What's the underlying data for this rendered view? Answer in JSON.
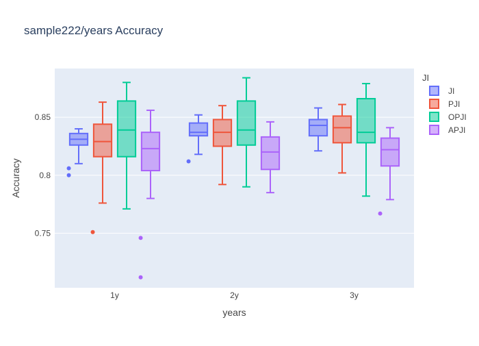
{
  "chart_data": {
    "type": "box",
    "title": "sample222/years Accuracy",
    "xlabel": "years",
    "ylabel": "Accuracy",
    "ylim": [
      0.703,
      0.892
    ],
    "yticks": [
      0.75,
      0.8,
      0.85
    ],
    "ytick_labels": [
      "0.75",
      "0.8",
      "0.85"
    ],
    "categories": [
      "1y",
      "2y",
      "3y"
    ],
    "legend_title": "JI",
    "legend_position": "right",
    "grid": true,
    "colors": {
      "plot_bg": "#e5ecf6",
      "grid": "#ffffff",
      "text": "#444444",
      "title": "#2a3f5f"
    },
    "series": [
      {
        "name": "JI",
        "color": "#636efa",
        "boxes": [
          {
            "min": 0.81,
            "q1": 0.826,
            "median": 0.831,
            "q3": 0.836,
            "max": 0.84,
            "outliers": [
              0.806,
              0.8
            ]
          },
          {
            "min": 0.818,
            "q1": 0.834,
            "median": 0.837,
            "q3": 0.845,
            "max": 0.852,
            "outliers": [
              0.812
            ]
          },
          {
            "min": 0.821,
            "q1": 0.834,
            "median": 0.843,
            "q3": 0.848,
            "max": 0.858,
            "outliers": []
          }
        ]
      },
      {
        "name": "PJI",
        "color": "#ef553b",
        "boxes": [
          {
            "min": 0.776,
            "q1": 0.816,
            "median": 0.829,
            "q3": 0.844,
            "max": 0.863,
            "outliers": [
              0.751
            ]
          },
          {
            "min": 0.792,
            "q1": 0.825,
            "median": 0.837,
            "q3": 0.848,
            "max": 0.86,
            "outliers": []
          },
          {
            "min": 0.802,
            "q1": 0.828,
            "median": 0.841,
            "q3": 0.851,
            "max": 0.861,
            "outliers": []
          }
        ]
      },
      {
        "name": "OPJI",
        "color": "#00cc96",
        "boxes": [
          {
            "min": 0.771,
            "q1": 0.816,
            "median": 0.839,
            "q3": 0.864,
            "max": 0.88,
            "outliers": []
          },
          {
            "min": 0.79,
            "q1": 0.826,
            "median": 0.839,
            "q3": 0.864,
            "max": 0.884,
            "outliers": []
          },
          {
            "min": 0.782,
            "q1": 0.828,
            "median": 0.837,
            "q3": 0.866,
            "max": 0.879,
            "outliers": []
          }
        ]
      },
      {
        "name": "APJI",
        "color": "#ab63fa",
        "boxes": [
          {
            "min": 0.78,
            "q1": 0.804,
            "median": 0.823,
            "q3": 0.837,
            "max": 0.856,
            "outliers": [
              0.746,
              0.712
            ]
          },
          {
            "min": 0.785,
            "q1": 0.805,
            "median": 0.82,
            "q3": 0.833,
            "max": 0.846,
            "outliers": []
          },
          {
            "min": 0.779,
            "q1": 0.808,
            "median": 0.822,
            "q3": 0.832,
            "max": 0.841,
            "outliers": [
              0.767
            ]
          }
        ]
      }
    ]
  }
}
